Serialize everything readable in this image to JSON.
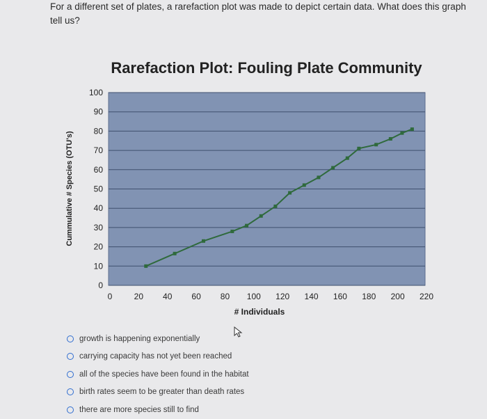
{
  "question": {
    "text": "For a different set of plates, a rarefaction plot was made to depict certain data. What does this graph tell us?"
  },
  "chart_data": {
    "type": "line",
    "title": "Rarefaction Plot: Fouling Plate Community",
    "xlabel": "# Individuals",
    "ylabel": "Cummulative # Species (OTU's)",
    "xlim": [
      0,
      220
    ],
    "ylim": [
      0,
      100
    ],
    "x_ticks": [
      "0",
      "20",
      "40",
      "60",
      "80",
      "100",
      "120",
      "140",
      "160",
      "180",
      "200",
      "220"
    ],
    "y_ticks": [
      "0",
      "10",
      "20",
      "30",
      "40",
      "50",
      "60",
      "70",
      "80",
      "90",
      "100"
    ],
    "grid": true,
    "legend": "none",
    "plot_background": "#8193b3",
    "line_color": "#2f6a3c",
    "series": [
      {
        "x": [
          26,
          46,
          66,
          86,
          96,
          106,
          116,
          126,
          136,
          146,
          156,
          166,
          174,
          186,
          196,
          204,
          211
        ],
        "y": [
          10,
          16.5,
          23,
          28,
          31,
          36,
          41,
          48,
          52,
          56,
          61,
          66,
          71,
          73,
          76,
          79,
          81
        ]
      }
    ]
  },
  "options": [
    {
      "label": "growth is happening exponentially"
    },
    {
      "label": "carrying capacity has not yet been reached"
    },
    {
      "label": "all of the species have been found in the habitat"
    },
    {
      "label": "birth rates seem to be greater than death rates"
    },
    {
      "label": "there are more species still to find"
    }
  ]
}
